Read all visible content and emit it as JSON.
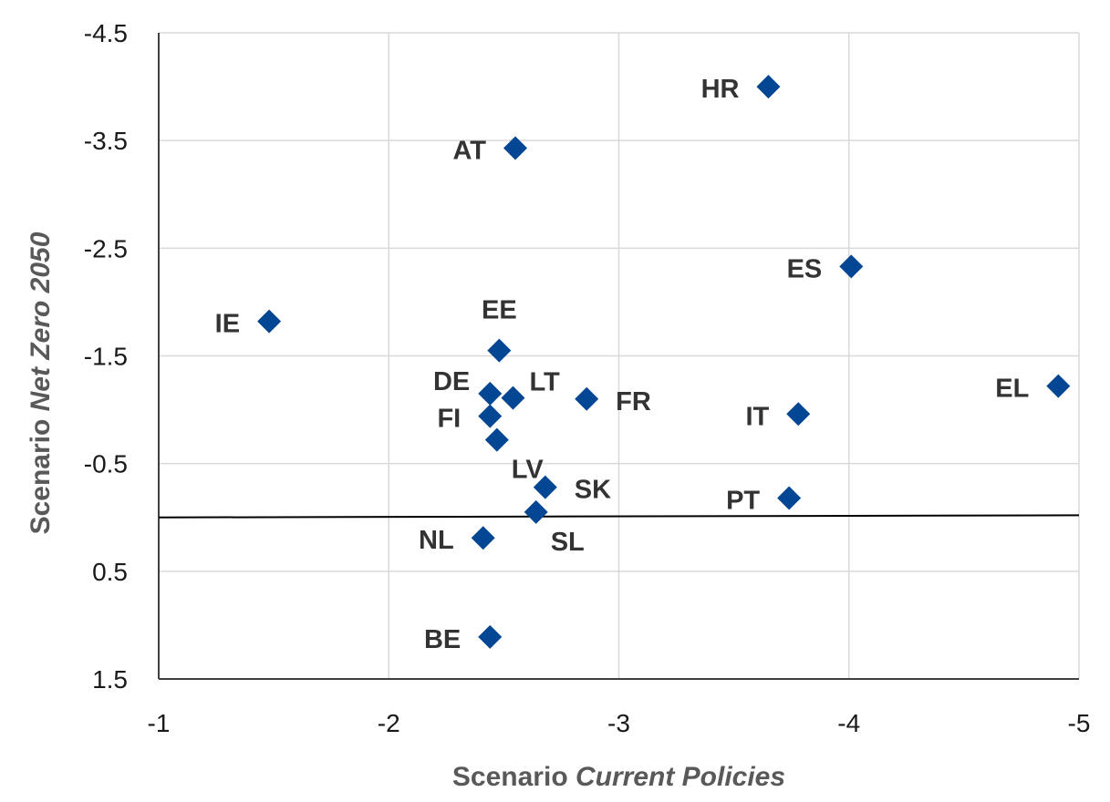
{
  "chart_data": {
    "type": "scatter",
    "xlabel": {
      "prefix": "Scenario ",
      "emphasis": "Current Policies"
    },
    "ylabel": {
      "prefix": "Scenario ",
      "emphasis": "Net Zero 2050"
    },
    "xlim": [
      -1,
      -5
    ],
    "ylim": [
      1.5,
      -4.5
    ],
    "x_ticks": [
      {
        "value": -1,
        "label": "-1"
      },
      {
        "value": -2,
        "label": "-2"
      },
      {
        "value": -3,
        "label": "-3"
      },
      {
        "value": -4,
        "label": "-4"
      },
      {
        "value": -5,
        "label": "-5"
      }
    ],
    "y_ticks": [
      {
        "value": -4.5,
        "label": "-4.5"
      },
      {
        "value": -3.5,
        "label": "-3.5"
      },
      {
        "value": -2.5,
        "label": "-2.5"
      },
      {
        "value": -1.5,
        "label": "-1.5"
      },
      {
        "value": -0.5,
        "label": "-0.5"
      },
      {
        "value": 0.5,
        "label": "0.5"
      },
      {
        "value": 1.5,
        "label": "1.5"
      }
    ],
    "zero_line": {
      "from": [
        -1,
        0.0
      ],
      "to": [
        -5,
        -0.02
      ]
    },
    "grid": true,
    "marker": "diamond",
    "marker_color": "#034694",
    "points": [
      {
        "label": "HR",
        "x": -3.65,
        "y": -4.0,
        "label_pos": "left"
      },
      {
        "label": "AT",
        "x": -2.55,
        "y": -3.43,
        "label_pos": "left"
      },
      {
        "label": "ES",
        "x": -4.01,
        "y": -2.33,
        "label_pos": "left"
      },
      {
        "label": "IE",
        "x": -1.48,
        "y": -1.82,
        "label_pos": "left"
      },
      {
        "label": "EE",
        "x": -2.48,
        "y": -1.55,
        "label_pos": "above"
      },
      {
        "label": "EL",
        "x": -4.91,
        "y": -1.22,
        "label_pos": "left"
      },
      {
        "label": "DE",
        "x": -2.44,
        "y": -1.15,
        "label_pos": "left-up"
      },
      {
        "label": "LT",
        "x": -2.54,
        "y": -1.11,
        "label_pos": "right-up"
      },
      {
        "label": "FR",
        "x": -2.86,
        "y": -1.1,
        "label_pos": "right"
      },
      {
        "label": "IT",
        "x": -3.78,
        "y": -0.96,
        "label_pos": "left"
      },
      {
        "label": "FI",
        "x": -2.44,
        "y": -0.94,
        "label_pos": "left"
      },
      {
        "label": "LV",
        "x": -2.47,
        "y": -0.72,
        "label_pos": "right-down"
      },
      {
        "label": "SK",
        "x": -2.68,
        "y": -0.28,
        "label_pos": "right"
      },
      {
        "label": "PT",
        "x": -3.74,
        "y": -0.18,
        "label_pos": "left"
      },
      {
        "label": "SL",
        "x": -2.64,
        "y": -0.05,
        "label_pos": "right-down"
      },
      {
        "label": "NL",
        "x": -2.41,
        "y": 0.19,
        "label_pos": "left"
      },
      {
        "label": "BE",
        "x": -2.44,
        "y": 1.11,
        "label_pos": "left"
      }
    ]
  }
}
